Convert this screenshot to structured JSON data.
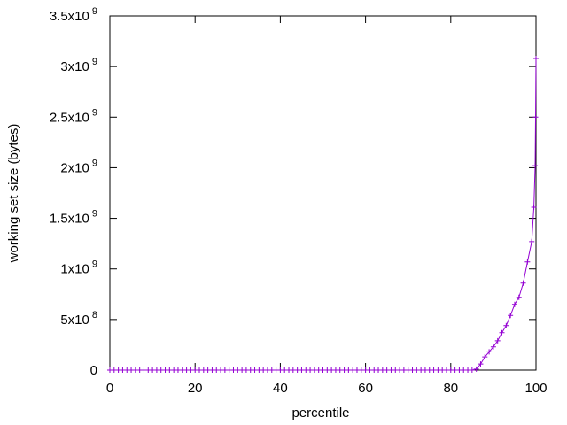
{
  "chart_data": {
    "type": "line",
    "x_label": "percentile",
    "y_label": "working set size (bytes)",
    "x": [
      0,
      1,
      2,
      3,
      4,
      5,
      6,
      7,
      8,
      9,
      10,
      11,
      12,
      13,
      14,
      15,
      16,
      17,
      18,
      19,
      20,
      21,
      22,
      23,
      24,
      25,
      26,
      27,
      28,
      29,
      30,
      31,
      32,
      33,
      34,
      35,
      36,
      37,
      38,
      39,
      40,
      41,
      42,
      43,
      44,
      45,
      46,
      47,
      48,
      49,
      50,
      51,
      52,
      53,
      54,
      55,
      56,
      57,
      58,
      59,
      60,
      61,
      62,
      63,
      64,
      65,
      66,
      67,
      68,
      69,
      70,
      71,
      72,
      73,
      74,
      75,
      76,
      77,
      78,
      79,
      80,
      81,
      82,
      83,
      84,
      85,
      86,
      87,
      88,
      89,
      90,
      91,
      92,
      93,
      94,
      95,
      96,
      97,
      98,
      99,
      99.5,
      99.8,
      99.9,
      100
    ],
    "series": [
      {
        "color": "#9400d3",
        "marker": "+",
        "values": [
          0,
          0,
          0,
          0,
          0,
          0,
          0,
          0,
          0,
          0,
          0,
          0,
          0,
          0,
          0,
          0,
          0,
          0,
          0,
          0,
          0,
          0,
          0,
          0,
          0,
          0,
          0,
          0,
          0,
          0,
          0,
          0,
          0,
          0,
          0,
          0,
          0,
          0,
          0,
          0,
          0,
          0,
          0,
          0,
          0,
          0,
          0,
          0,
          0,
          0,
          0,
          0,
          0,
          0,
          0,
          0,
          0,
          0,
          0,
          0,
          0,
          0,
          0,
          0,
          0,
          0,
          0,
          0,
          0,
          0,
          0,
          0,
          0,
          0,
          0,
          0,
          0,
          0,
          0,
          0,
          0,
          0,
          0,
          0,
          0,
          0,
          10000000,
          60000000,
          130000000,
          180000000,
          230000000,
          290000000,
          370000000,
          440000000,
          540000000,
          650000000,
          720000000,
          860000000,
          1070000000,
          1270000000,
          1610000000,
          2020000000,
          2500000000,
          3080000000
        ]
      }
    ],
    "xlim": [
      0,
      100
    ],
    "ylim": [
      0,
      3500000000
    ],
    "xticks": [
      0,
      20,
      40,
      60,
      80,
      100
    ],
    "yticks": [
      0,
      {
        "value": 500000000,
        "label": "5x10^8"
      },
      {
        "value": 1000000000,
        "label": "1x10^9"
      },
      {
        "value": 1500000000,
        "label": "1.5x10^9"
      },
      {
        "value": 2000000000,
        "label": "2x10^9"
      },
      {
        "value": 2500000000,
        "label": "2.5x10^9"
      },
      {
        "value": 3000000000,
        "label": "3x10^9"
      },
      {
        "value": 3500000000,
        "label": "3.5x10^9"
      }
    ]
  }
}
